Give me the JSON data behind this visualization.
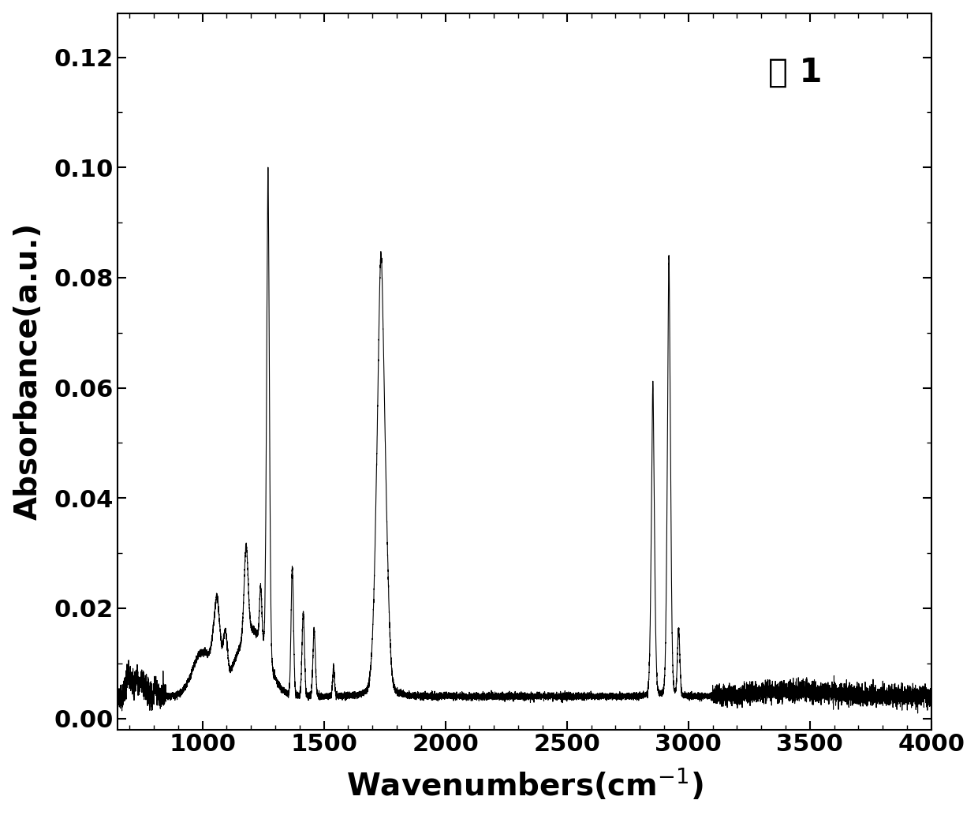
{
  "xlim": [
    650,
    4000
  ],
  "ylim": [
    -0.002,
    0.128
  ],
  "xlabel": "Wavenumbers(cm$^{-1}$)",
  "ylabel": "Absorbance(a.u.)",
  "annotation": "样 1",
  "xticks": [
    1000,
    1500,
    2000,
    2500,
    3000,
    3500,
    4000
  ],
  "yticks": [
    0.0,
    0.02,
    0.04,
    0.06,
    0.08,
    0.1,
    0.12
  ],
  "line_color": "#000000",
  "background_color": "#ffffff",
  "label_fontsize": 28,
  "tick_fontsize": 22,
  "annotation_fontsize": 30
}
